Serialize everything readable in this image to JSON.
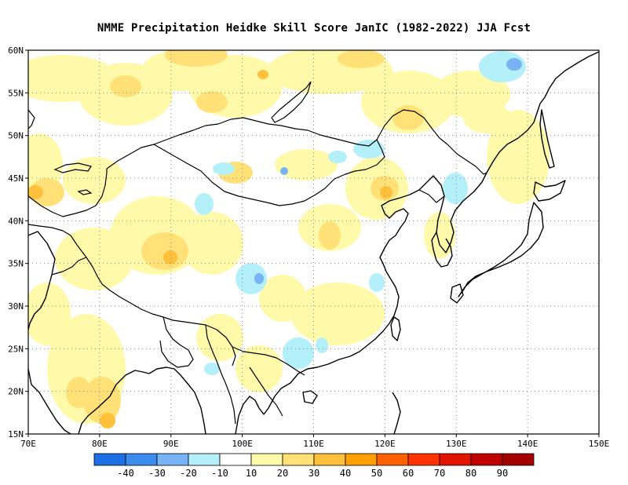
{
  "title": "NMME  Precipitation Heidke Skill Score JanIC (1982-2022) JJA Fcst",
  "map": {
    "lon_range": [
      70,
      150
    ],
    "lat_range": [
      15,
      60
    ],
    "lat_ticks": [
      "60N",
      "55N",
      "50N",
      "45N",
      "40N",
      "35N",
      "30N",
      "25N",
      "20N",
      "15N"
    ],
    "lon_ticks": [
      "70E",
      "80E",
      "90E",
      "100E",
      "110E",
      "120E",
      "130E",
      "140E",
      "150E"
    ],
    "gridlines": "dotted"
  },
  "colorbar": {
    "labels": [
      "-40",
      "-30",
      "-20",
      "-10",
      "10",
      "20",
      "30",
      "40",
      "50",
      "60",
      "70",
      "80",
      "90"
    ],
    "colors": [
      "#1e6ee6",
      "#3c8cf0",
      "#78b4f5",
      "#b4f0fa",
      "#ffffff",
      "#fffaaa",
      "#ffe178",
      "#ffc03c",
      "#ffa000",
      "#ff6000",
      "#ff3200",
      "#e11400",
      "#c00000",
      "#a50000"
    ]
  },
  "colors": {
    "light_yellow": "#fffaaa",
    "yellow": "#ffe178",
    "orange": "#ffc03c",
    "light_blue": "#b4f0fa",
    "mid_blue": "#78b4f5"
  }
}
